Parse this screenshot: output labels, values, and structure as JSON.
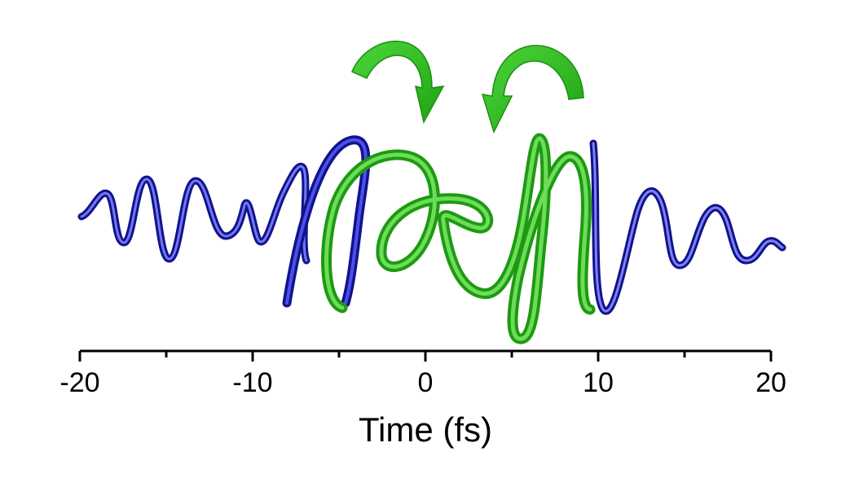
{
  "chart_data": {
    "type": "line",
    "xlabel": "Time (fs)",
    "xlim": [
      -20,
      20
    ],
    "x_ticks": [
      -20,
      -10,
      0,
      10,
      20
    ],
    "x_tick_labels": [
      "-20",
      "-10",
      "0",
      "10",
      "20"
    ],
    "series": [
      {
        "color": "#1f22b0"
      },
      {
        "color": "#2fbf1f"
      }
    ]
  },
  "colors": {
    "blue_wave": "#1f22b0",
    "green_wave": "#2fbf1f",
    "arrows": "#2fbf1f"
  }
}
